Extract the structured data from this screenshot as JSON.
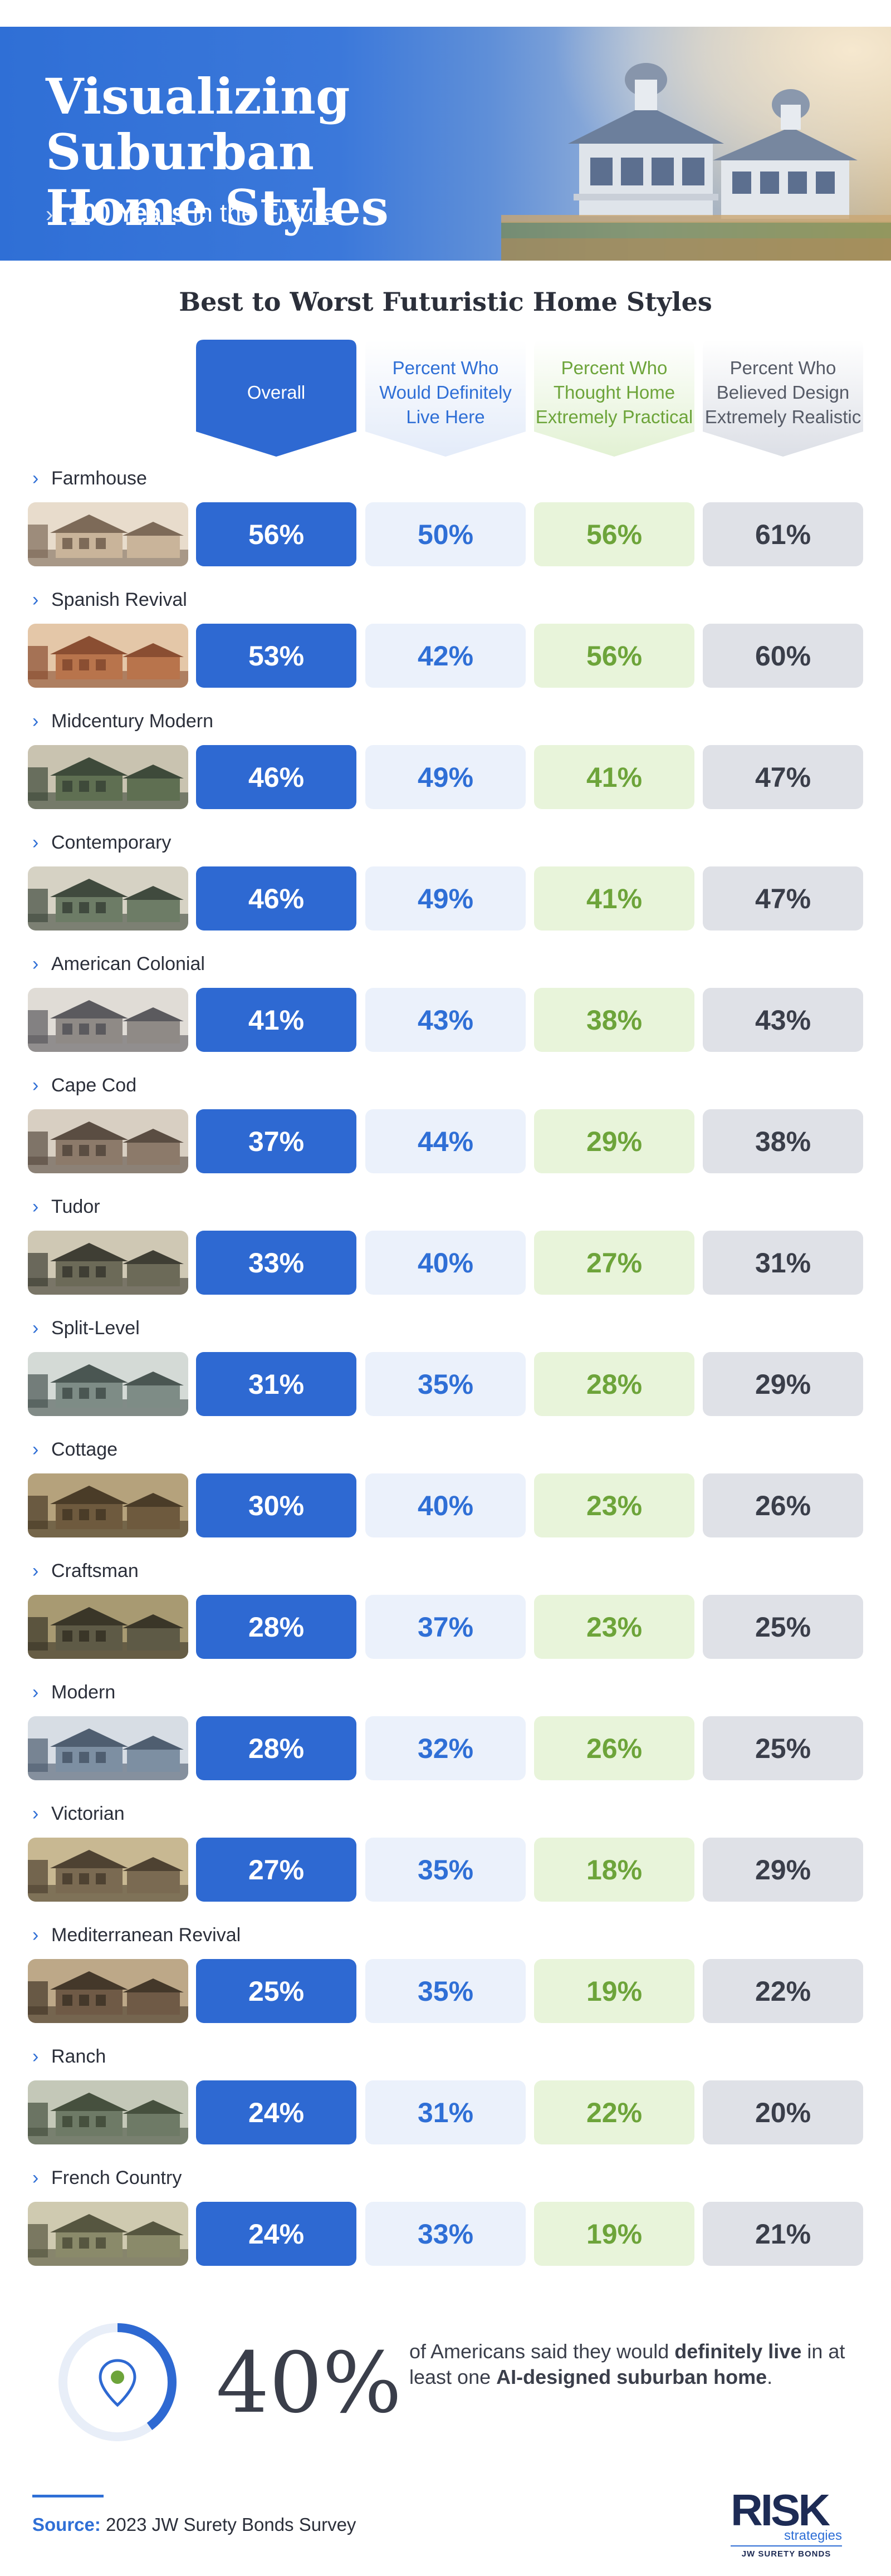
{
  "header": {
    "title_line1": "Visualizing Suburban",
    "title_line2": "Home Styles",
    "subtitle_bold": "100 Years",
    "subtitle_rest": "in the Future"
  },
  "chart_title": "Best to Worst Futuristic Home Styles",
  "columns": {
    "overall": "Overall",
    "live": "Percent Who Would Definitely Live Here",
    "practical": "Percent Who Thought Home Extremely Practical",
    "realistic": "Percent Who Believed Design Extremely Realistic"
  },
  "colors": {
    "overall": "#2e69d2",
    "live": "#ebf1fb",
    "practical": "#e8f4da",
    "realistic": "#dfe1e7"
  },
  "chart_data": {
    "type": "table",
    "title": "Best to Worst Futuristic Home Styles",
    "columns": [
      "Overall",
      "Percent Who Would Definitely Live Here",
      "Percent Who Thought Home Extremely Practical",
      "Percent Who Believed Design Extremely Realistic"
    ],
    "rows": [
      {
        "name": "Farmhouse",
        "overall": "56%",
        "live": "50%",
        "practical": "56%",
        "realistic": "61%"
      },
      {
        "name": "Spanish Revival",
        "overall": "53%",
        "live": "42%",
        "practical": "56%",
        "realistic": "60%"
      },
      {
        "name": "Midcentury Modern",
        "overall": "46%",
        "live": "49%",
        "practical": "41%",
        "realistic": "47%"
      },
      {
        "name": "Contemporary",
        "overall": "46%",
        "live": "49%",
        "practical": "41%",
        "realistic": "47%"
      },
      {
        "name": "American Colonial",
        "overall": "41%",
        "live": "43%",
        "practical": "38%",
        "realistic": "43%"
      },
      {
        "name": "Cape Cod",
        "overall": "37%",
        "live": "44%",
        "practical": "29%",
        "realistic": "38%"
      },
      {
        "name": "Tudor",
        "overall": "33%",
        "live": "40%",
        "practical": "27%",
        "realistic": "31%"
      },
      {
        "name": "Split-Level",
        "overall": "31%",
        "live": "35%",
        "practical": "28%",
        "realistic": "29%"
      },
      {
        "name": "Cottage",
        "overall": "30%",
        "live": "40%",
        "practical": "23%",
        "realistic": "26%"
      },
      {
        "name": "Craftsman",
        "overall": "28%",
        "live": "37%",
        "practical": "23%",
        "realistic": "25%"
      },
      {
        "name": "Modern",
        "overall": "28%",
        "live": "32%",
        "practical": "26%",
        "realistic": "25%"
      },
      {
        "name": "Victorian",
        "overall": "27%",
        "live": "35%",
        "practical": "18%",
        "realistic": "29%"
      },
      {
        "name": "Mediterranean Revival",
        "overall": "25%",
        "live": "35%",
        "practical": "19%",
        "realistic": "22%"
      },
      {
        "name": "Ranch",
        "overall": "24%",
        "live": "31%",
        "practical": "22%",
        "realistic": "20%"
      },
      {
        "name": "French Country",
        "overall": "24%",
        "live": "33%",
        "practical": "19%",
        "realistic": "21%"
      }
    ]
  },
  "stat": {
    "value": "40%",
    "ring_fraction": 0.4,
    "text_pre": "of Americans said they would",
    "text_bold1": "definitely live",
    "text_mid": "in at least one",
    "text_bold2": "AI-designed suburban home",
    "text_end": ".",
    "icon": "location-pin-icon"
  },
  "footer": {
    "source_label": "Source:",
    "source_text": "2023 JW Surety Bonds Survey",
    "logo_main": "RISK",
    "logo_strategies": "strategies",
    "logo_sub": "JW SURETY BONDS"
  }
}
